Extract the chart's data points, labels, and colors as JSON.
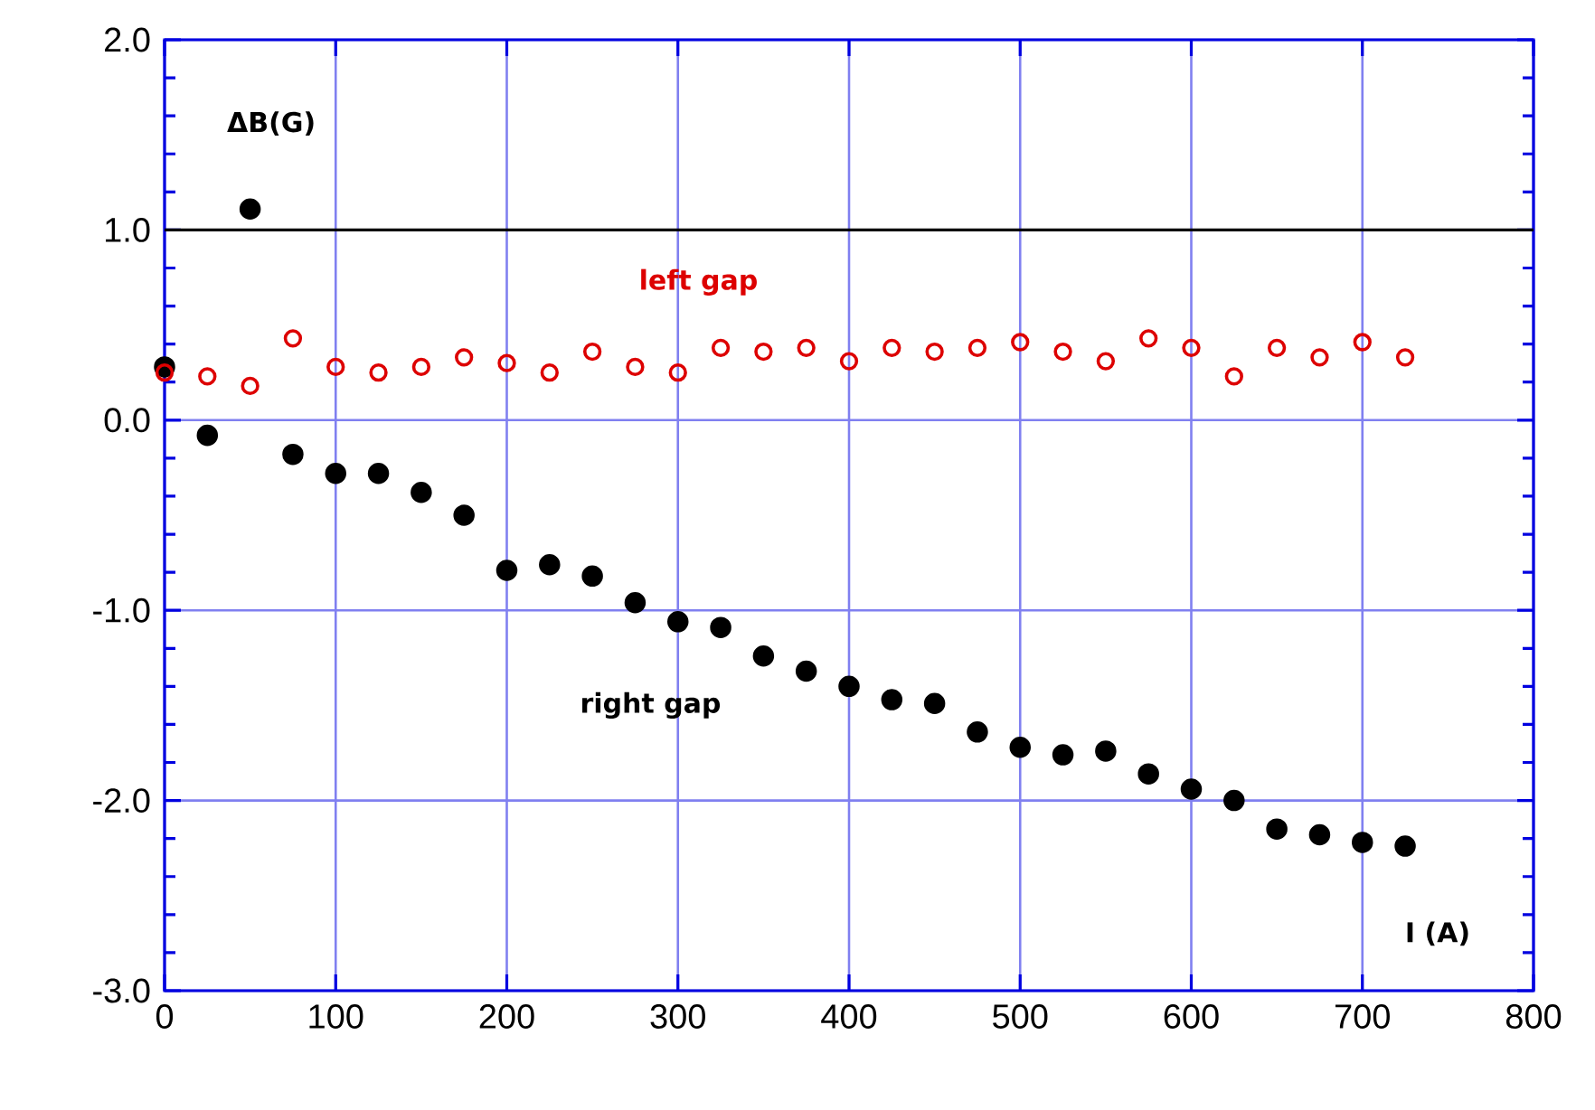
{
  "chart_data": {
    "type": "scatter",
    "xlabel": "I (A)",
    "ylabel": "ΔB(G)",
    "x": [
      0,
      25,
      50,
      75,
      100,
      125,
      150,
      175,
      200,
      225,
      250,
      275,
      300,
      325,
      350,
      375,
      400,
      425,
      450,
      475,
      500,
      525,
      550,
      575,
      600,
      625,
      650,
      675,
      700,
      725
    ],
    "series": [
      {
        "name": "left gap",
        "color": "#dd0000",
        "values": [
          0.25,
          0.23,
          0.18,
          0.43,
          0.28,
          0.25,
          0.28,
          0.33,
          0.3,
          0.25,
          0.36,
          0.28,
          0.25,
          0.38,
          0.36,
          0.38,
          0.31,
          0.38,
          0.36,
          0.38,
          0.41,
          0.36,
          0.31,
          0.43,
          0.38,
          0.23,
          0.38,
          0.33,
          0.41,
          0.33
        ]
      },
      {
        "name": "right gap",
        "color": "#000000",
        "values": [
          0.28,
          -0.08,
          1.11,
          -0.18,
          -0.28,
          -0.28,
          -0.38,
          -0.5,
          -0.79,
          -0.76,
          -0.82,
          -0.96,
          -1.06,
          -1.09,
          -1.24,
          -1.32,
          -1.4,
          -1.47,
          -1.49,
          -1.64,
          -1.72,
          -1.76,
          -1.74,
          -1.86,
          -1.94,
          -2.0,
          -2.15,
          -2.18,
          -2.22,
          -2.24
        ]
      }
    ],
    "xlim": [
      0,
      800
    ],
    "xticks": [
      0,
      100,
      200,
      300,
      400,
      500,
      600,
      700,
      800
    ],
    "ylim": [
      -3,
      2
    ],
    "yticks": [
      {
        "value": -3,
        "label": "-3.0"
      },
      {
        "value": -2,
        "label": "-2.0"
      },
      {
        "value": -1,
        "label": "-1.0"
      },
      {
        "value": 0,
        "label": "0.0"
      },
      {
        "value": 1,
        "label": "1.0"
      },
      {
        "value": 2,
        "label": "2.0"
      }
    ],
    "ref_lines": [
      {
        "axis": "y",
        "value": 1,
        "color": "#000000"
      }
    ],
    "grid": true,
    "marker": "circle"
  }
}
